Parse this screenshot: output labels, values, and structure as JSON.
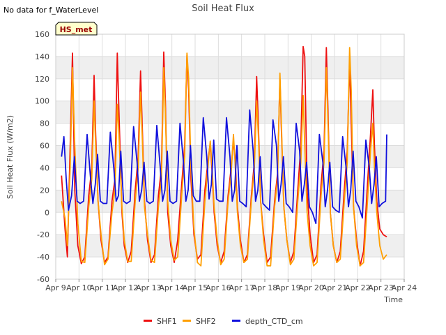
{
  "no_data_note": "No data for f_WaterLevel",
  "site_badge": "HS_met",
  "chart_data": {
    "type": "line",
    "title": "Soil Heat Flux",
    "xlabel": "Time",
    "ylabel": "Soil Heat Flux (W/m2)",
    "xlim": [
      9,
      24
    ],
    "ylim": [
      -60,
      160
    ],
    "yticks": [
      -60,
      -40,
      -20,
      0,
      20,
      40,
      60,
      80,
      100,
      120,
      140,
      160
    ],
    "xticks": [
      9,
      10,
      11,
      12,
      13,
      14,
      15,
      16,
      17,
      18,
      19,
      20,
      21,
      22,
      23,
      24
    ],
    "xtick_labels": [
      "Apr 9",
      "Apr 10",
      "Apr 11",
      "Apr 12",
      "Apr 13",
      "Apr 14",
      "Apr 15",
      "Apr 16",
      "Apr 17",
      "Apr 18",
      "Apr 19",
      "Apr 20",
      "Apr 21",
      "Apr 22",
      "Apr 23",
      "Apr 24"
    ],
    "legend": [
      "SHF1",
      "SHF2",
      "depth_CTD_cm"
    ],
    "colors": {
      "SHF1": "#ee1111",
      "SHF2": "#ff9f00",
      "depth_CTD_cm": "#1111dd",
      "grid": "#dddddd",
      "band": "#efefef",
      "badge_bg": "#ffffcc",
      "badge_text": "#990000"
    },
    "series": [
      {
        "name": "SHF1",
        "x": [
          9.25,
          9.4,
          9.5,
          9.62,
          9.72,
          9.82,
          9.95,
          10.1,
          10.25,
          10.42,
          10.55,
          10.65,
          10.72,
          10.82,
          10.95,
          11.1,
          11.25,
          11.42,
          11.55,
          11.65,
          11.72,
          11.85,
          11.95,
          12.1,
          12.25,
          12.42,
          12.55,
          12.65,
          12.72,
          12.82,
          12.95,
          13.1,
          13.25,
          13.42,
          13.55,
          13.65,
          13.72,
          13.82,
          13.95,
          14.1,
          14.25,
          14.42,
          14.55,
          14.65,
          14.72,
          14.82,
          14.95,
          15.1,
          15.25,
          15.42,
          15.55,
          15.65,
          15.72,
          15.82,
          15.95,
          16.1,
          16.25,
          16.42,
          16.55,
          16.65,
          16.72,
          16.82,
          16.95,
          17.1,
          17.25,
          17.42,
          17.55,
          17.65,
          17.72,
          17.82,
          17.95,
          18.1,
          18.25,
          18.42,
          18.55,
          18.65,
          18.72,
          18.82,
          18.95,
          19.1,
          19.25,
          19.42,
          19.55,
          19.65,
          19.72,
          19.82,
          19.95,
          20.1,
          20.25,
          20.42,
          20.55,
          20.65,
          20.72,
          20.82,
          20.95,
          21.1,
          21.25,
          21.42,
          21.55,
          21.65,
          21.72,
          21.82,
          21.95,
          22.1,
          22.25,
          22.42,
          22.55,
          22.65,
          22.72,
          22.82,
          22.95,
          23.1,
          23.25
        ],
        "values": [
          33,
          -15,
          -40,
          60,
          143,
          20,
          -30,
          -46,
          -40,
          15,
          40,
          123,
          70,
          10,
          -25,
          -45,
          -40,
          10,
          30,
          143,
          90,
          0,
          -30,
          -45,
          -35,
          20,
          50,
          127,
          80,
          10,
          -25,
          -45,
          -38,
          15,
          40,
          144,
          100,
          0,
          -30,
          -45,
          -25,
          25,
          60,
          141,
          110,
          30,
          -20,
          -42,
          -38,
          20,
          45,
          62,
          40,
          0,
          -30,
          -45,
          -35,
          15,
          40,
          64,
          50,
          5,
          -25,
          -45,
          -38,
          15,
          45,
          122,
          80,
          10,
          -20,
          -45,
          -40,
          10,
          35,
          120,
          70,
          5,
          -25,
          -45,
          -35,
          20,
          60,
          149,
          140,
          20,
          -20,
          -45,
          -38,
          25,
          55,
          148,
          90,
          0,
          -30,
          -45,
          -35,
          20,
          55,
          136,
          80,
          5,
          -25,
          -48,
          -35,
          25,
          70,
          110,
          60,
          10,
          -15,
          -20,
          -22
        ]
      },
      {
        "name": "SHF2",
        "x": [
          9.25,
          9.4,
          9.5,
          9.62,
          9.72,
          9.82,
          9.95,
          10.1,
          10.25,
          10.42,
          10.55,
          10.65,
          10.72,
          10.82,
          10.95,
          11.1,
          11.25,
          11.42,
          11.55,
          11.65,
          11.72,
          11.85,
          11.95,
          12.1,
          12.25,
          12.42,
          12.55,
          12.65,
          12.72,
          12.82,
          12.95,
          13.1,
          13.25,
          13.42,
          13.55,
          13.65,
          13.72,
          13.82,
          13.95,
          14.1,
          14.25,
          14.42,
          14.55,
          14.65,
          14.72,
          14.82,
          14.95,
          15.1,
          15.25,
          15.42,
          15.55,
          15.65,
          15.72,
          15.82,
          15.95,
          16.1,
          16.25,
          16.42,
          16.55,
          16.65,
          16.72,
          16.82,
          16.95,
          17.1,
          17.25,
          17.42,
          17.55,
          17.65,
          17.72,
          17.82,
          17.95,
          18.1,
          18.25,
          18.42,
          18.55,
          18.65,
          18.72,
          18.82,
          18.95,
          19.1,
          19.25,
          19.42,
          19.55,
          19.65,
          19.72,
          19.82,
          19.95,
          20.1,
          20.25,
          20.42,
          20.55,
          20.65,
          20.72,
          20.82,
          20.95,
          21.1,
          21.25,
          21.42,
          21.55,
          21.65,
          21.72,
          21.82,
          21.95,
          22.1,
          22.25,
          22.42,
          22.55,
          22.65,
          22.72,
          22.82,
          22.95,
          23.1,
          23.25
        ],
        "values": [
          10,
          -5,
          -30,
          40,
          130,
          60,
          -10,
          -44,
          -45,
          5,
          30,
          100,
          60,
          10,
          -20,
          -47,
          -42,
          0,
          20,
          97,
          70,
          5,
          -25,
          -44,
          -44,
          10,
          40,
          108,
          70,
          5,
          -20,
          -43,
          -45,
          5,
          30,
          130,
          90,
          10,
          -25,
          -43,
          -40,
          15,
          50,
          143,
          120,
          40,
          -15,
          -45,
          -48,
          10,
          40,
          64,
          45,
          5,
          -25,
          -47,
          -42,
          10,
          35,
          70,
          45,
          0,
          -30,
          -45,
          -42,
          10,
          40,
          100,
          70,
          10,
          -25,
          -48,
          -48,
          5,
          30,
          125,
          75,
          5,
          -25,
          -47,
          -42,
          10,
          45,
          105,
          60,
          0,
          -30,
          -48,
          -45,
          15,
          45,
          130,
          80,
          0,
          -30,
          -45,
          -42,
          10,
          45,
          148,
          110,
          5,
          -30,
          -48,
          -45,
          10,
          55,
          80,
          40,
          0,
          -30,
          -42,
          -38
        ]
      },
      {
        "name": "depth_CTD_cm",
        "x": [
          9.25,
          9.35,
          9.45,
          9.55,
          9.68,
          9.8,
          9.92,
          10.05,
          10.2,
          10.35,
          10.5,
          10.6,
          10.7,
          10.8,
          10.92,
          11.05,
          11.2,
          11.35,
          11.5,
          11.6,
          11.7,
          11.8,
          11.92,
          12.05,
          12.2,
          12.35,
          12.5,
          12.6,
          12.7,
          12.8,
          12.92,
          13.05,
          13.2,
          13.35,
          13.5,
          13.6,
          13.7,
          13.8,
          13.92,
          14.05,
          14.2,
          14.35,
          14.5,
          14.6,
          14.7,
          14.8,
          14.92,
          15.05,
          15.2,
          15.35,
          15.5,
          15.6,
          15.7,
          15.8,
          15.92,
          16.05,
          16.2,
          16.35,
          16.5,
          16.6,
          16.7,
          16.8,
          16.92,
          17.05,
          17.2,
          17.35,
          17.5,
          17.6,
          17.7,
          17.8,
          17.92,
          18.05,
          18.2,
          18.35,
          18.5,
          18.6,
          18.7,
          18.8,
          18.92,
          19.05,
          19.2,
          19.35,
          19.5,
          19.6,
          19.7,
          19.8,
          19.92,
          20.05,
          20.2,
          20.35,
          20.5,
          20.6,
          20.7,
          20.8,
          20.92,
          21.05,
          21.2,
          21.35,
          21.5,
          21.6,
          21.7,
          21.8,
          21.92,
          22.05,
          22.2,
          22.35,
          22.5,
          22.6,
          22.7,
          22.8,
          22.92,
          23.05,
          23.2,
          23.25
        ],
        "values": [
          50,
          68,
          30,
          2,
          15,
          50,
          10,
          8,
          10,
          70,
          30,
          8,
          25,
          52,
          10,
          8,
          8,
          72,
          40,
          10,
          15,
          55,
          10,
          8,
          10,
          77,
          45,
          10,
          20,
          45,
          10,
          8,
          10,
          78,
          40,
          10,
          20,
          55,
          10,
          8,
          10,
          80,
          45,
          10,
          20,
          60,
          15,
          10,
          10,
          85,
          50,
          12,
          25,
          65,
          12,
          10,
          10,
          85,
          50,
          10,
          20,
          60,
          10,
          8,
          5,
          92,
          55,
          10,
          20,
          50,
          8,
          5,
          2,
          83,
          60,
          10,
          25,
          50,
          8,
          5,
          0,
          80,
          55,
          10,
          25,
          45,
          5,
          0,
          -10,
          70,
          45,
          5,
          20,
          45,
          5,
          2,
          0,
          68,
          40,
          5,
          20,
          55,
          10,
          5,
          -5,
          65,
          40,
          8,
          25,
          50,
          5,
          8,
          10,
          70
        ]
      }
    ]
  }
}
